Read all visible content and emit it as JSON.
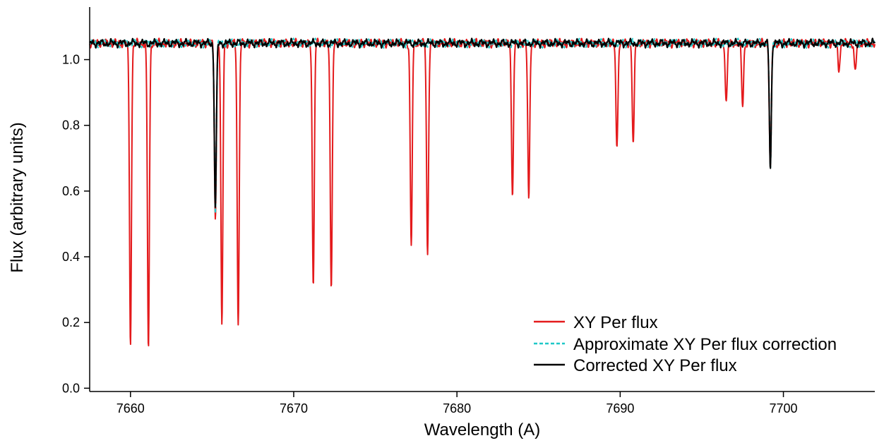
{
  "chart_data": {
    "type": "line",
    "title": "",
    "xlabel": "Wavelength (A)",
    "ylabel": "Flux (arbitrary units)",
    "xlim": [
      7657.5,
      7705.6
    ],
    "ylim": [
      -0.01,
      1.16
    ],
    "xticks": [
      7660,
      7670,
      7680,
      7690,
      7700
    ],
    "yticks": [
      0.0,
      0.2,
      0.4,
      0.6,
      0.8,
      1.0
    ],
    "ytick_labels": [
      "0.0",
      "0.2",
      "0.4",
      "0.6",
      "0.8",
      "1.0"
    ],
    "grid": false,
    "legend_position": "bottom-right",
    "series": [
      {
        "name": "XY Per flux",
        "color": "#e41a1c",
        "style": "solid",
        "baseline": 1.05,
        "absorption_lines": [
          {
            "wavelength": 7660.0,
            "min_flux": 0.14
          },
          {
            "wavelength": 7661.1,
            "min_flux": 0.12
          },
          {
            "wavelength": 7665.2,
            "min_flux": 0.52
          },
          {
            "wavelength": 7665.6,
            "min_flux": 0.19
          },
          {
            "wavelength": 7666.6,
            "min_flux": 0.19
          },
          {
            "wavelength": 7671.2,
            "min_flux": 0.31
          },
          {
            "wavelength": 7672.3,
            "min_flux": 0.3
          },
          {
            "wavelength": 7677.2,
            "min_flux": 0.43
          },
          {
            "wavelength": 7678.2,
            "min_flux": 0.41
          },
          {
            "wavelength": 7683.4,
            "min_flux": 0.59
          },
          {
            "wavelength": 7684.4,
            "min_flux": 0.57
          },
          {
            "wavelength": 7689.8,
            "min_flux": 0.73
          },
          {
            "wavelength": 7690.8,
            "min_flux": 0.74
          },
          {
            "wavelength": 7696.5,
            "min_flux": 0.87
          },
          {
            "wavelength": 7697.5,
            "min_flux": 0.86
          },
          {
            "wavelength": 7699.2,
            "min_flux": 0.67
          },
          {
            "wavelength": 7703.4,
            "min_flux": 0.97
          },
          {
            "wavelength": 7704.4,
            "min_flux": 0.96
          }
        ]
      },
      {
        "name": "Approximate XY Per flux correction",
        "color": "#1fc8c8",
        "style": "dashed",
        "baseline": 1.05,
        "absorption_lines": [
          {
            "wavelength": 7665.2,
            "min_flux": 0.54
          },
          {
            "wavelength": 7699.2,
            "min_flux": 0.67
          }
        ]
      },
      {
        "name": "Corrected XY Per flux",
        "color": "#000000",
        "style": "solid",
        "baseline": 1.05,
        "absorption_lines": [
          {
            "wavelength": 7665.2,
            "min_flux": 0.55
          },
          {
            "wavelength": 7699.2,
            "min_flux": 0.67
          }
        ]
      }
    ]
  }
}
